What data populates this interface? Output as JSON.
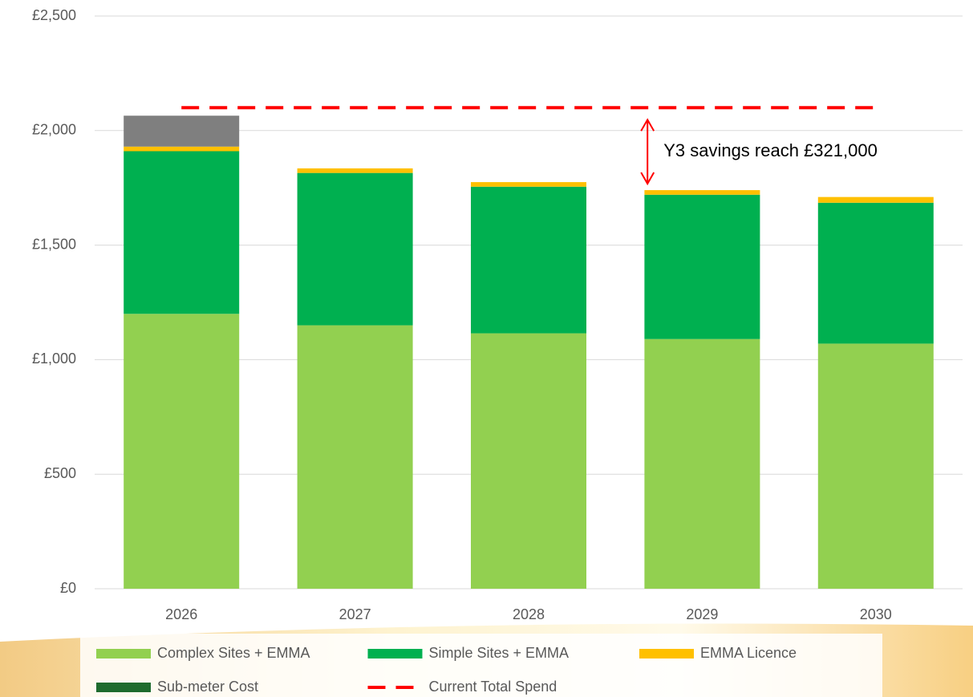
{
  "chart_data": {
    "type": "bar",
    "stacked": true,
    "categories": [
      "2026",
      "2027",
      "2028",
      "2029",
      "2030"
    ],
    "series": [
      {
        "name": "Complex Sites + EMMA",
        "color": "#92d050",
        "values": [
          1200,
          1150,
          1115,
          1090,
          1070
        ]
      },
      {
        "name": "Simple Sites + EMMA",
        "color": "#00b050",
        "values": [
          710,
          665,
          640,
          630,
          615
        ]
      },
      {
        "name": "EMMA Licence",
        "color": "#ffc000",
        "values": [
          20,
          20,
          20,
          20,
          25
        ]
      },
      {
        "name": "Sub-meter Cost",
        "color": "#7f7f7f",
        "legend_color": "#1e6b2e",
        "values": [
          135,
          0,
          0,
          0,
          0
        ]
      },
      {
        "name": "Current Total Spend",
        "type": "line",
        "dashed": true,
        "color": "#ff0000",
        "values": [
          2100,
          2100,
          2100,
          2100,
          2100
        ]
      }
    ],
    "ylim": [
      0,
      2500
    ],
    "yticks": [
      {
        "value": 0,
        "label": "£0"
      },
      {
        "value": 500,
        "label": "£500"
      },
      {
        "value": 1000,
        "label": "£1,000"
      },
      {
        "value": 1500,
        "label": "£1,500"
      },
      {
        "value": 2000,
        "label": "£2,000"
      },
      {
        "value": 2500,
        "label": "£2,500"
      }
    ],
    "grid": true,
    "legend": "bottom",
    "annotations": [
      {
        "text": "Y3 savings reach £321,000",
        "category": 3
      }
    ]
  }
}
